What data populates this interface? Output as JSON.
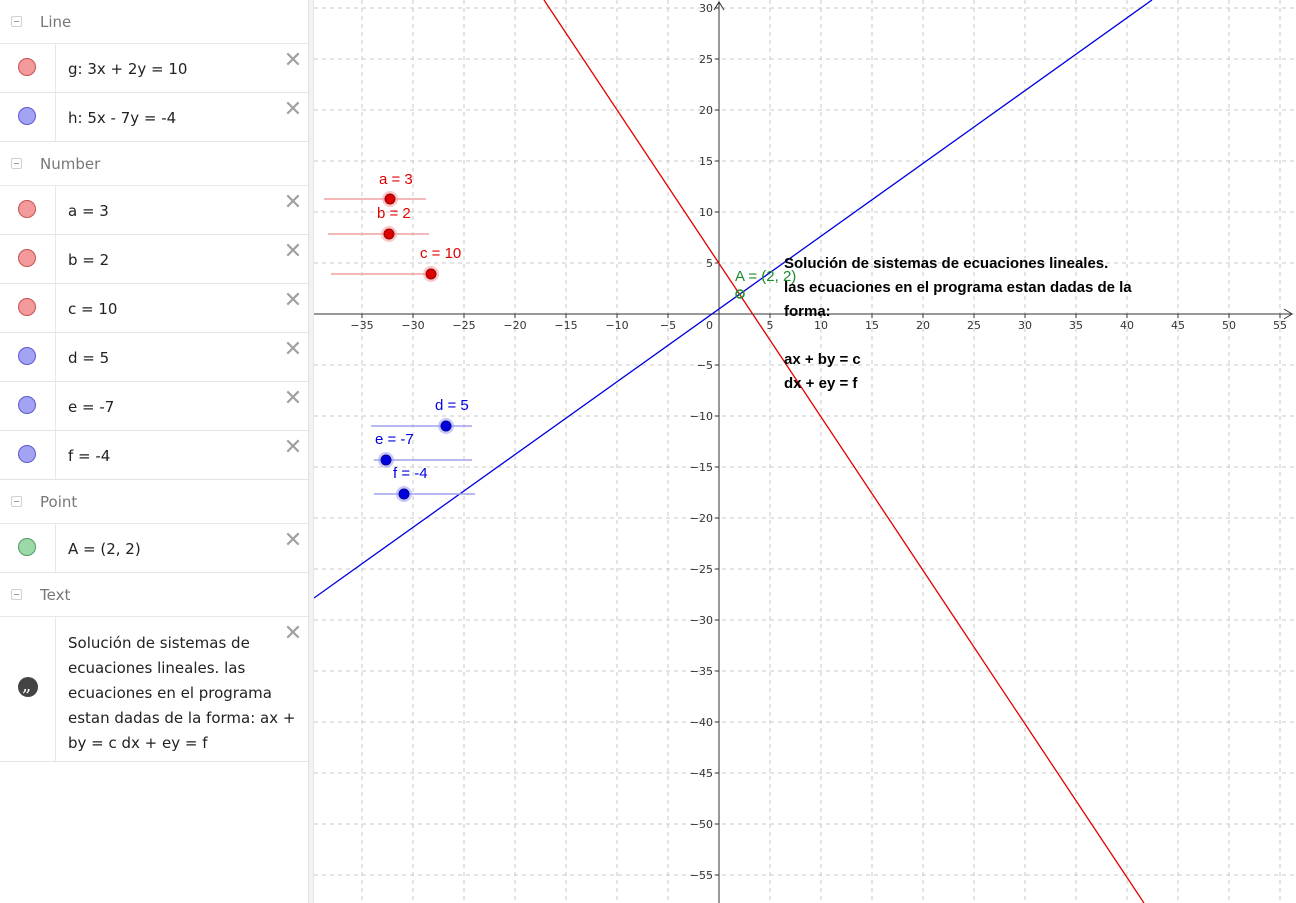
{
  "algebra": {
    "categories": {
      "line": "Line",
      "number": "Number",
      "point": "Point",
      "text": "Text"
    },
    "lines": [
      {
        "expr": "g: 3x + 2y = 10",
        "color": "#e00000"
      },
      {
        "expr": "h: 5x - 7y = -4",
        "color": "#0000e0"
      }
    ],
    "numbers": [
      {
        "expr": "a = 3",
        "color": "red"
      },
      {
        "expr": "b = 2",
        "color": "red"
      },
      {
        "expr": "c = 10",
        "color": "red"
      },
      {
        "expr": "d = 5",
        "color": "blue"
      },
      {
        "expr": "e = -7",
        "color": "blue"
      },
      {
        "expr": "f = -4",
        "color": "blue"
      }
    ],
    "points": [
      {
        "expr": "A = (2, 2)",
        "color": "green"
      }
    ],
    "texts": [
      {
        "expr": "Solución de sistemas de ecuaciones lineales. las ecuaciones en el programa estan dadas de la forma: ax + by = c dx + ey = f"
      }
    ],
    "delete_icon": "close-icon",
    "text_icon": "quote-icon"
  },
  "graphics": {
    "x_ticks": [
      "−35",
      "−30",
      "−25",
      "−20",
      "−15",
      "−10",
      "−5",
      "5",
      "10",
      "15",
      "20",
      "25",
      "30",
      "35",
      "40",
      "45",
      "50",
      "55"
    ],
    "y_ticks": [
      "30",
      "25",
      "20",
      "15",
      "10",
      "5",
      "−5",
      "−10",
      "−15",
      "−20",
      "−25",
      "−30",
      "−35",
      "−40",
      "−45",
      "−50",
      "−55"
    ],
    "origin_label": "0",
    "point_label": "A = (2, 2)",
    "slider_labels": {
      "a": "a = 3",
      "b": "b = 2",
      "c": "c = 10",
      "d": "d = 5",
      "e": "e = -7",
      "f": "f = -4"
    },
    "text_block": {
      "line1": "Solución de sistemas de ecuaciones lineales.",
      "line2": "las ecuaciones en el programa estan dadas de la",
      "line3": "forma:",
      "line4": "ax + by = c",
      "line5": "dx + ey =  f"
    },
    "colors": {
      "line_g": "#e00000",
      "line_h": "#0000e0",
      "point_A": "#1a8a2a",
      "grid": "#c8c8c8"
    }
  }
}
